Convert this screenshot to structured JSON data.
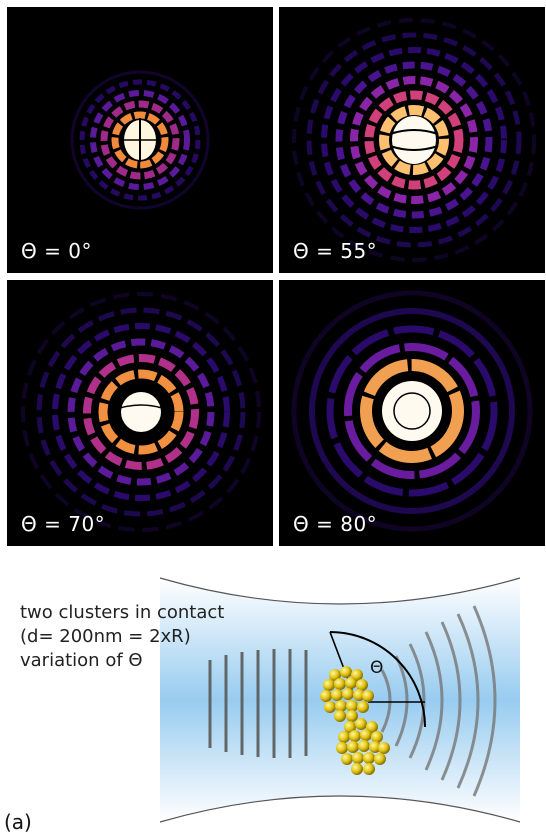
{
  "panels": [
    {
      "label": "Θ = 0°"
    },
    {
      "label": "Θ = 55°"
    },
    {
      "label": "Θ = 70°"
    },
    {
      "label": "Θ = 80°"
    }
  ],
  "scheme": {
    "caption_line1": "two clusters in contact",
    "caption_line2": "(d= 200nm = 2xR)",
    "caption_line3": "variation of Θ",
    "angle_symbol": "Θ",
    "figure_label": "(a)"
  },
  "colors": {
    "background": "#000000",
    "ring_dark": "#2a0a6b",
    "ring_purple": "#7a1fb0",
    "ring_magenta": "#c0307a",
    "ring_orange": "#f08a3c",
    "ring_hot": "#fff2c8",
    "beam": "#9fd0f2",
    "cluster": "#e8d21a"
  }
}
